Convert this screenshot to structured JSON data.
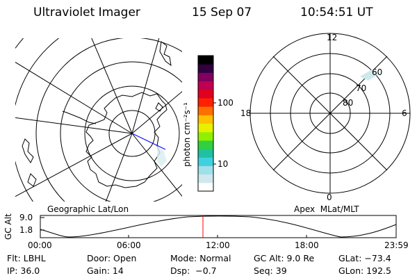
{
  "header": {
    "instrument": "Ultraviolet Imager",
    "date": "15 Sep 07",
    "time": "10:54:51 UT"
  },
  "colorbar": {
    "unit_label": "photon cm⁻²s⁻¹",
    "ticks": [
      "100",
      "10"
    ],
    "colors": [
      "#ffffff",
      "#cfe8ee",
      "#a0e0e8",
      "#40d0e0",
      "#20c0a0",
      "#30d040",
      "#90f000",
      "#e8f000",
      "#ffc000",
      "#ff7000",
      "#ff2000",
      "#e00020",
      "#c00050",
      "#800060",
      "#300040",
      "#000000"
    ]
  },
  "geo_map": {
    "label": "Geographic Lat/Lon"
  },
  "apex_map": {
    "label": "Apex  MLat/MLT",
    "mlt_labels": {
      "top": "12",
      "left": "18",
      "right": "6",
      "bottom": "0"
    },
    "lat_labels": [
      "60",
      "70",
      "80"
    ]
  },
  "altitude_plot": {
    "ylabel": "GC Alt",
    "yticks": [
      "9.0",
      "1.8"
    ],
    "xticks": [
      "00:00",
      "06:00",
      "12:00",
      "18:00",
      "23:59"
    ],
    "marker_color": "#ff0000"
  },
  "info": {
    "row1": [
      "Flt: LBHL",
      "Door: Open",
      "Mode: Normal",
      "GC Alt: 9.0 Re",
      "GLat: −73.4"
    ],
    "row2": [
      "IP: 36.0",
      "Gain: 14",
      "Dsp:  −0.7",
      "Seq: 39",
      "GLon: 192.5"
    ]
  }
}
